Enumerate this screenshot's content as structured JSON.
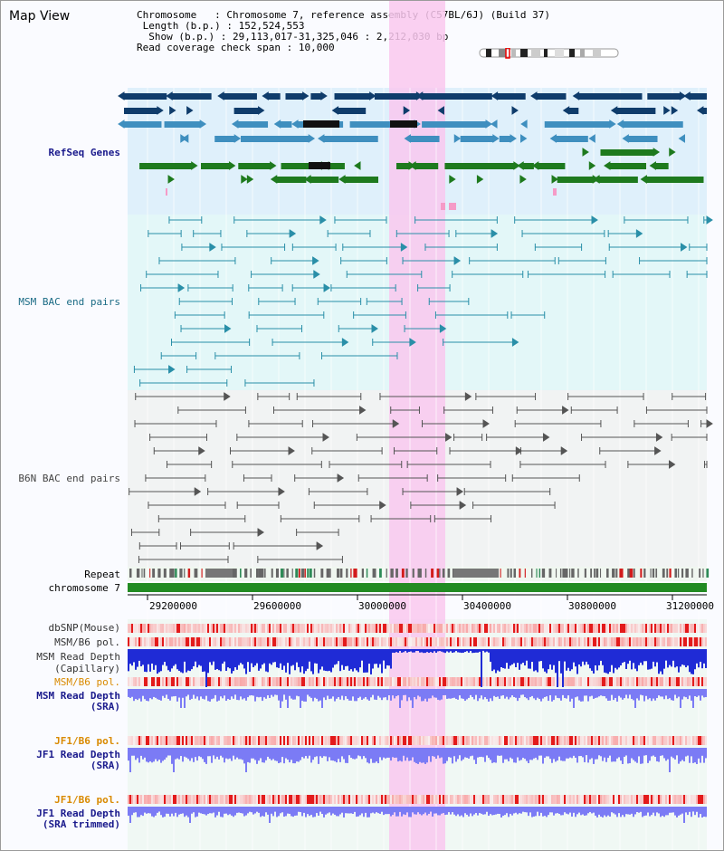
{
  "app": {
    "title": "Map View"
  },
  "info": {
    "chromosome_label": "Chromosome",
    "chromosome_value": "Chromosome 7, reference assembly (C57BL/6J) (Build 37)",
    "length_label": "Length (b.p.)",
    "length_value": "152,524,553",
    "show_label": "Show (b.p.)",
    "show_value": "29,113,017-31,325,046 : 2,212,030 bp",
    "coverage_label": "Read coverage check span",
    "coverage_value": "10,000"
  },
  "tracks": {
    "refseq": "RefSeq Genes",
    "msm_bac": "MSM BAC end pairs",
    "b6n_bac": "B6N BAC end pairs",
    "repeat": "Repeat",
    "chromosome": "chromosome 7",
    "dbsnp": "dbSNP(Mouse)",
    "msm_b6_pol_1": "MSM/B6 pol.",
    "msm_read_depth_cap_1": "MSM Read Depth",
    "msm_read_depth_cap_2": "(Capillary)",
    "msm_b6_pol_2": "MSM/B6 pol.",
    "msm_read_depth_sra_1": "MSM Read Depth",
    "msm_read_depth_sra_2": "(SRA)",
    "jf1_b6_pol_1": "JF1/B6 pol.",
    "jf1_read_depth_1": "JF1 Read Depth",
    "jf1_read_depth_2": "(SRA)",
    "jf1_b6_pol_2": "JF1/B6 pol.",
    "jf1_read_depth_trim_1": "JF1 Read Depth",
    "jf1_read_depth_trim_2": "(SRA trimmed)"
  },
  "axis": {
    "ticks": [
      "29200000",
      "29600000",
      "30000000",
      "30400000",
      "30800000",
      "31200000"
    ]
  },
  "colors": {
    "highlight": "#f9c8ef",
    "refseq_bg": "#dff0fb",
    "msm_bg": "#e3f7f8",
    "b6n_bg": "#f1f3f3",
    "dark_gene": "#0f3c6b",
    "mid_gene": "#3f8fbf",
    "green_gene": "#1e7a1e",
    "msm_feature": "#2a8fa8",
    "b6n_feature": "#555555",
    "chromosome_bar": "#228b22",
    "depth_blue": "#1f2bd6",
    "depth_violet": "#7b7bf5"
  }
}
